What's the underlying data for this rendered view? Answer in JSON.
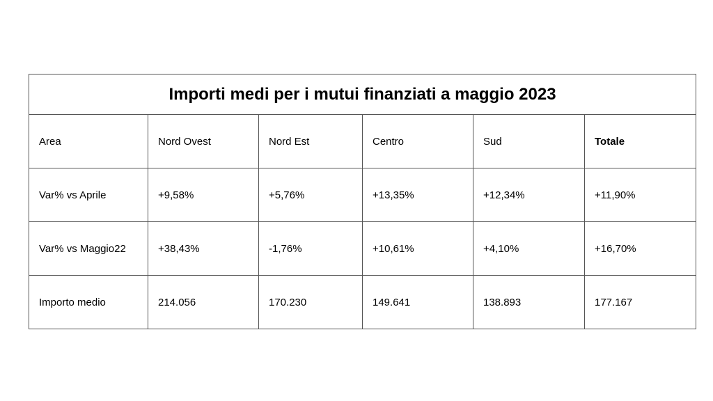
{
  "title": "Importi medi per i mutui finanziati a maggio 2023",
  "header": [
    "Area",
    "Nord Ovest",
    "Nord Est",
    "Centro",
    "Sud",
    "Totale"
  ],
  "rows": [
    [
      "Var% vs Aprile",
      "+9,58%",
      "+5,76%",
      "+13,35%",
      "+12,34%",
      "+11,90%"
    ],
    [
      "Var% vs Maggio22",
      "+38,43%",
      "-1,76%",
      "+10,61%",
      "+4,10%",
      "+16,70%"
    ],
    [
      "Importo medio",
      "214.056",
      "170.230",
      "149.641",
      "138.893",
      "177.167"
    ]
  ]
}
